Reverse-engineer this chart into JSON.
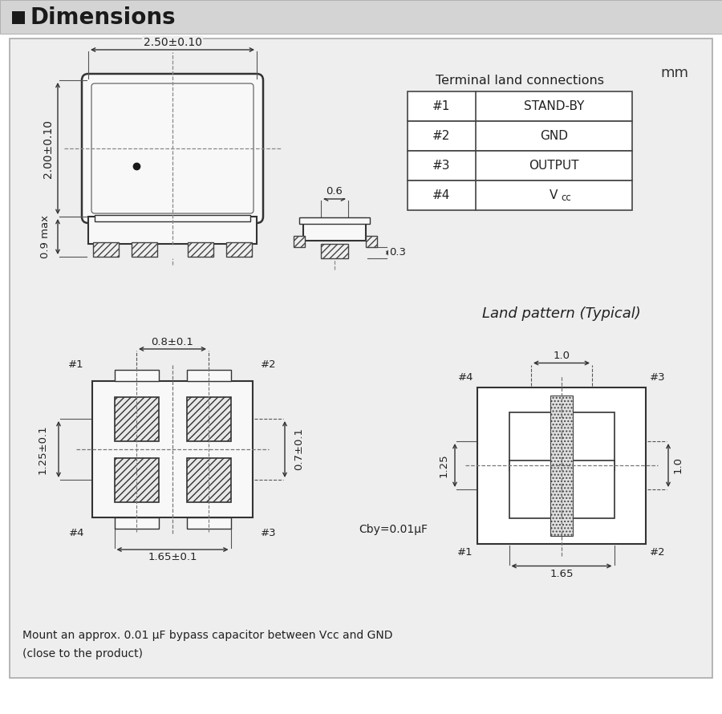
{
  "title": "Dimensions",
  "table_data": [
    [
      "#1",
      "STAND-BY"
    ],
    [
      "#2",
      "GND"
    ],
    [
      "#3",
      "OUTPUT"
    ],
    [
      "#4",
      "Vcc"
    ]
  ],
  "table_title": "Terminal land connections",
  "mm_label": "mm",
  "land_pattern_title": "Land pattern (Typical)",
  "bottom_note_line1": "Mount an approx. 0.01 μF bypass capacitor between Vcc and GND",
  "bottom_note_line2": "(close to the product)",
  "cby_label": "Cby=0.01μF"
}
